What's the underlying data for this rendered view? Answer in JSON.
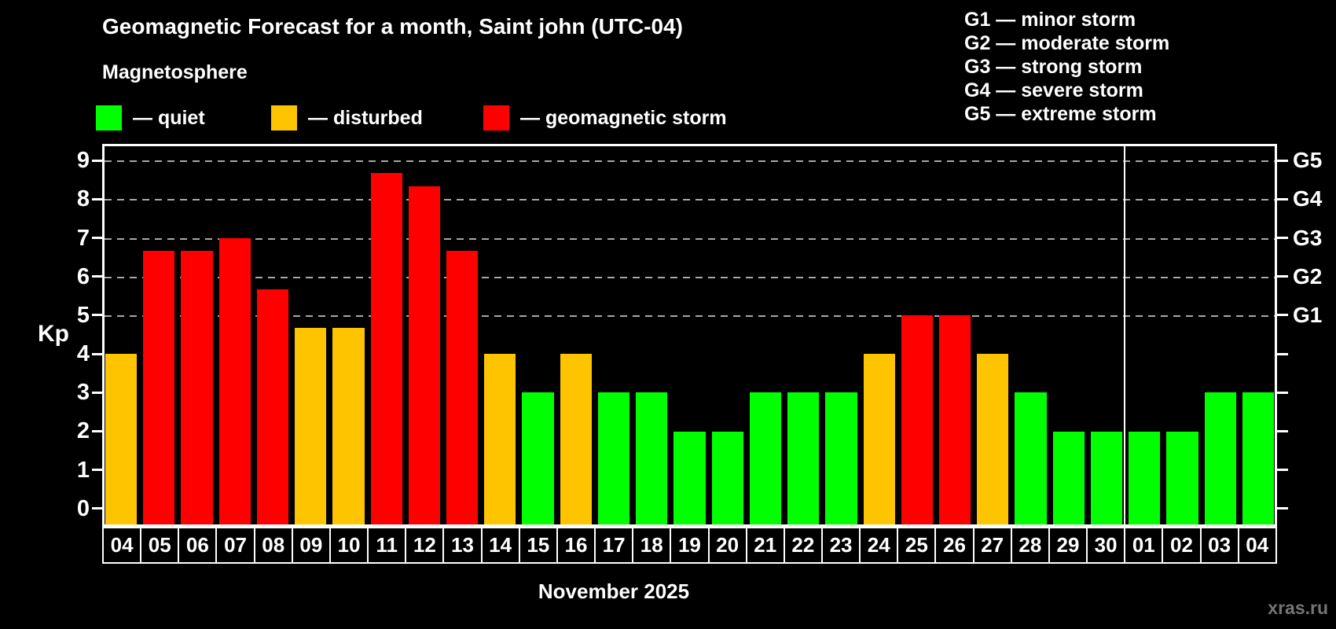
{
  "title": "Geomagnetic Forecast for a month, Saint john (UTC-04)",
  "subtitle": "Magnetosphere",
  "legend": {
    "items": [
      {
        "key": "quiet",
        "label": "— quiet",
        "color": "#00ff00"
      },
      {
        "key": "disturbed",
        "label": "— disturbed",
        "color": "#ffc400"
      },
      {
        "key": "storm",
        "label": "— geomagnetic storm",
        "color": "#ff0000"
      }
    ]
  },
  "storm_scale_legend": [
    "G1 — minor storm",
    "G2 — moderate storm",
    "G3 — strong storm",
    "G4 — severe storm",
    "G5 — extreme storm"
  ],
  "watermark": "xras.ru",
  "chart_data": {
    "type": "bar",
    "title": "Geomagnetic Forecast for a month, Saint john (UTC-04)",
    "xlabel": "November 2025",
    "ylabel": "Kp",
    "ylim": [
      -0.47,
      9.43
    ],
    "yticks": [
      0,
      1,
      2,
      3,
      4,
      5,
      6,
      7,
      8,
      9
    ],
    "grid": "dashed horizontal lines at Kp 5-9",
    "legend_position": "top",
    "grid_levels": [
      {
        "kp": 5,
        "label": "G1"
      },
      {
        "kp": 6,
        "label": "G2"
      },
      {
        "kp": 7,
        "label": "G3"
      },
      {
        "kp": 8,
        "label": "G4"
      },
      {
        "kp": 9,
        "label": "G5"
      }
    ],
    "month_separator_index": 27,
    "categories": [
      "04",
      "05",
      "06",
      "07",
      "08",
      "09",
      "10",
      "11",
      "12",
      "13",
      "14",
      "15",
      "16",
      "17",
      "18",
      "19",
      "20",
      "21",
      "22",
      "23",
      "24",
      "25",
      "26",
      "27",
      "28",
      "29",
      "30",
      "01",
      "02",
      "03",
      "04"
    ],
    "values": [
      4,
      6.67,
      6.67,
      7,
      5.67,
      4.67,
      4.67,
      8.67,
      8.33,
      6.67,
      4,
      3,
      4,
      3,
      3,
      2,
      2,
      3,
      3,
      3,
      4,
      5,
      5,
      4,
      3,
      2,
      2,
      2,
      2,
      3,
      3
    ],
    "status": [
      "disturbed",
      "storm",
      "storm",
      "storm",
      "storm",
      "disturbed",
      "disturbed",
      "storm",
      "storm",
      "storm",
      "disturbed",
      "quiet",
      "disturbed",
      "quiet",
      "quiet",
      "quiet",
      "quiet",
      "quiet",
      "quiet",
      "quiet",
      "disturbed",
      "storm",
      "storm",
      "disturbed",
      "quiet",
      "quiet",
      "quiet",
      "quiet",
      "quiet",
      "quiet",
      "quiet"
    ],
    "colors": {
      "quiet": "#00ff00",
      "disturbed": "#ffc400",
      "storm": "#ff0000"
    }
  }
}
